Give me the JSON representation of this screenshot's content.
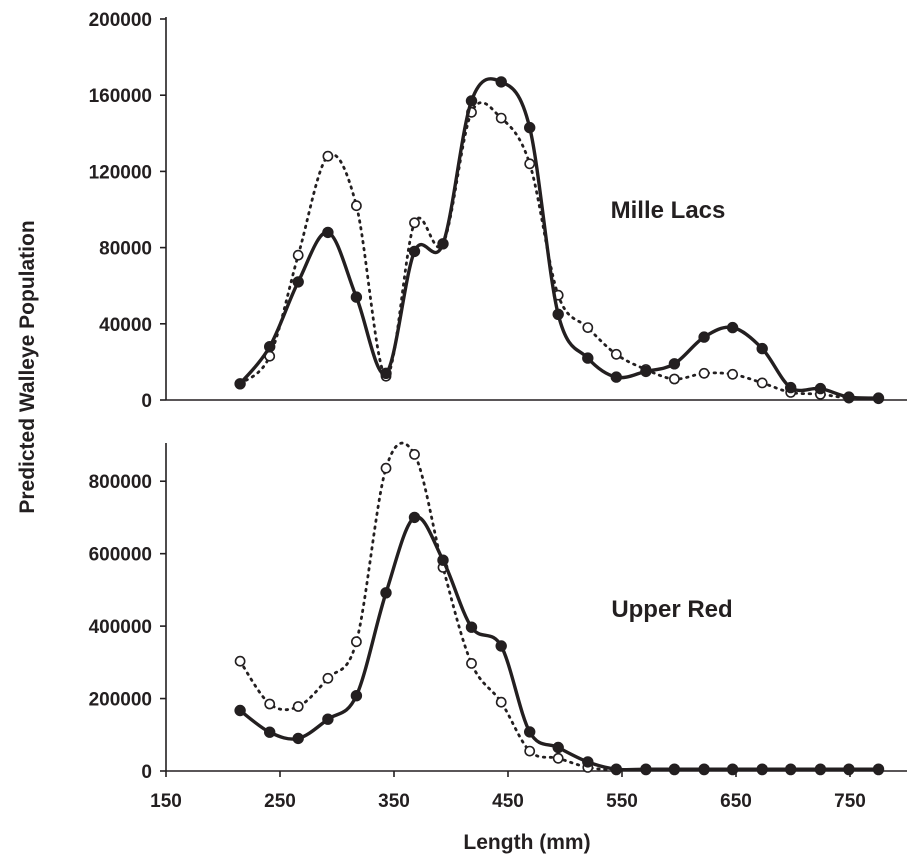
{
  "chart_data": [
    {
      "type": "line",
      "panel_label": "Mille Lacs",
      "xlabel": "",
      "ylabel": "",
      "xlim": [
        150,
        800
      ],
      "ylim": [
        0,
        200000
      ],
      "y_ticks": [
        "0",
        "40000",
        "80000",
        "120000",
        "160000",
        "200000"
      ],
      "x_ticks": [],
      "series": [
        {
          "marker": "filled-circle",
          "line": "solid",
          "points": [
            [
              215,
              8500
            ],
            [
              241,
              28000
            ],
            [
              266,
              62000
            ],
            [
              292,
              88000
            ],
            [
              317,
              54000
            ],
            [
              343,
              14000
            ],
            [
              368,
              78000
            ],
            [
              393,
              82000
            ],
            [
              418,
              157000
            ],
            [
              444,
              167000
            ],
            [
              469,
              143000
            ],
            [
              494,
              45000
            ],
            [
              520,
              22000
            ],
            [
              545,
              12000
            ],
            [
              571,
              15000
            ],
            [
              596,
              19000
            ],
            [
              622,
              33000
            ],
            [
              647,
              38000
            ],
            [
              673,
              27000
            ],
            [
              698,
              6500
            ],
            [
              724,
              6000
            ],
            [
              749,
              1500
            ],
            [
              775,
              1000
            ]
          ]
        },
        {
          "marker": "open-circle",
          "line": "dotted",
          "points": [
            [
              215,
              8500
            ],
            [
              241,
              23000
            ],
            [
              266,
              76000
            ],
            [
              292,
              128000
            ],
            [
              317,
              102000
            ],
            [
              343,
              12500
            ],
            [
              368,
              93000
            ],
            [
              393,
              82000
            ],
            [
              418,
              151000
            ],
            [
              444,
              148000
            ],
            [
              469,
              124000
            ],
            [
              494,
              55000
            ],
            [
              520,
              38000
            ],
            [
              545,
              24000
            ],
            [
              571,
              16000
            ],
            [
              596,
              11000
            ],
            [
              622,
              14000
            ],
            [
              647,
              13500
            ],
            [
              673,
              9000
            ],
            [
              698,
              4000
            ],
            [
              724,
              3000
            ],
            [
              749,
              1000
            ],
            [
              775,
              700
            ]
          ]
        }
      ]
    },
    {
      "type": "line",
      "panel_label": "Upper Red",
      "xlabel": "Length (mm)",
      "ylabel": "",
      "xlim": [
        150,
        800
      ],
      "ylim": [
        0,
        900000
      ],
      "y_ticks": [
        "0",
        "200000",
        "400000",
        "600000",
        "800000"
      ],
      "x_ticks": [
        "150",
        "250",
        "350",
        "450",
        "550",
        "650",
        "750"
      ],
      "series": [
        {
          "marker": "filled-circle",
          "line": "solid",
          "points": [
            [
              215,
              167000
            ],
            [
              241,
              107000
            ],
            [
              266,
              90000
            ],
            [
              292,
              143000
            ],
            [
              317,
              208000
            ],
            [
              343,
              492000
            ],
            [
              368,
              700000
            ],
            [
              393,
              582000
            ],
            [
              418,
              397000
            ],
            [
              444,
              345000
            ],
            [
              469,
              108000
            ],
            [
              494,
              65000
            ],
            [
              520,
              25000
            ],
            [
              545,
              5000
            ],
            [
              571,
              5000
            ],
            [
              596,
              5000
            ],
            [
              622,
              5000
            ],
            [
              647,
              5000
            ],
            [
              673,
              5000
            ],
            [
              698,
              5000
            ],
            [
              724,
              5000
            ],
            [
              749,
              5000
            ],
            [
              775,
              5000
            ]
          ]
        },
        {
          "marker": "open-circle",
          "line": "dotted",
          "points": [
            [
              215,
              303000
            ],
            [
              241,
              185000
            ],
            [
              266,
              178000
            ],
            [
              292,
              256000
            ],
            [
              317,
              357000
            ],
            [
              343,
              836000
            ],
            [
              368,
              874000
            ],
            [
              393,
              562000
            ],
            [
              418,
              297000
            ],
            [
              444,
              190000
            ],
            [
              469,
              55000
            ],
            [
              494,
              35000
            ],
            [
              520,
              10000
            ],
            [
              545,
              3000
            ],
            [
              571,
              3000
            ],
            [
              596,
              3000
            ],
            [
              622,
              3000
            ],
            [
              647,
              3000
            ],
            [
              673,
              3000
            ],
            [
              698,
              3000
            ],
            [
              724,
              3000
            ],
            [
              749,
              3000
            ],
            [
              775,
              3000
            ]
          ]
        }
      ]
    }
  ],
  "shared_ylabel": "Predicted Walleye Population"
}
